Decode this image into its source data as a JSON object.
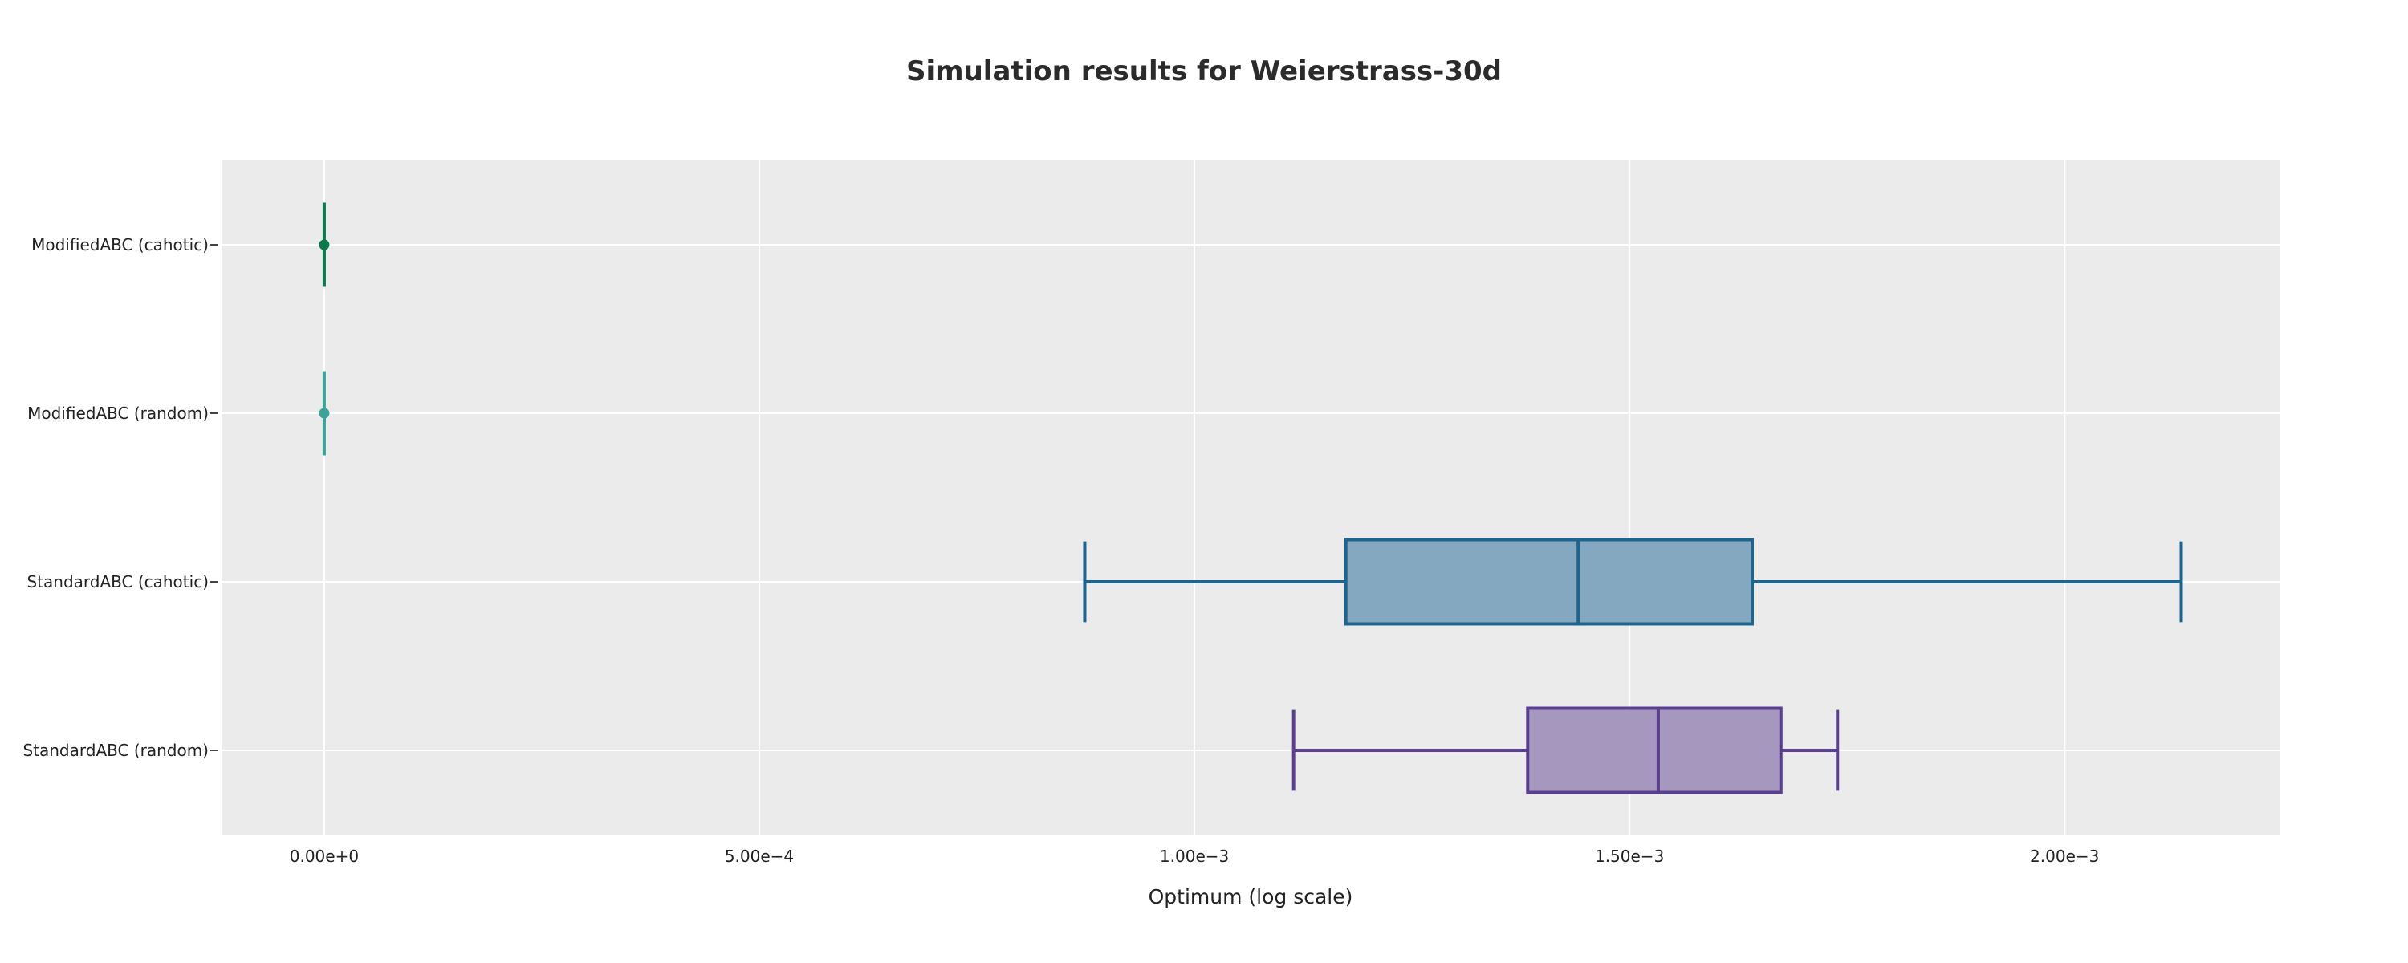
{
  "chart_data": {
    "type": "box",
    "title": "Simulation results for Weierstrass-30d",
    "xlabel": "Optimum (log scale)",
    "ylabel": "",
    "xlim": [
      -0.000118,
      0.002247
    ],
    "x_ticks": [
      {
        "value": 0,
        "label": "0.00e+0"
      },
      {
        "value": 0.0005,
        "label": "5.00e−4"
      },
      {
        "value": 0.001,
        "label": "1.00e−3"
      },
      {
        "value": 0.0015,
        "label": "1.50e−3"
      },
      {
        "value": 0.002,
        "label": "2.00e−3"
      }
    ],
    "grid": true,
    "legend": "none",
    "series": [
      {
        "name": "ModifiedABC (cahotic)",
        "min": 0,
        "q1": 0,
        "median": 0,
        "q3": 0,
        "max": 0,
        "color": "#0b7a4b",
        "fill": "#0b7a4b"
      },
      {
        "name": "ModifiedABC (random)",
        "min": 0,
        "q1": 0,
        "median": 0,
        "q3": 0,
        "max": 0,
        "color": "#3aa39a",
        "fill": "#3aa39a"
      },
      {
        "name": "StandardABC (cahotic)",
        "min": 0.000874,
        "q1": 0.001174,
        "median": 0.001441,
        "q3": 0.001641,
        "max": 0.002134,
        "color": "#1d6490",
        "fill": "#84a8c0"
      },
      {
        "name": "StandardABC (random)",
        "min": 0.001114,
        "q1": 0.001383,
        "median": 0.001533,
        "q3": 0.001674,
        "max": 0.001739,
        "color": "#5a3f91",
        "fill": "#a597be"
      }
    ]
  }
}
